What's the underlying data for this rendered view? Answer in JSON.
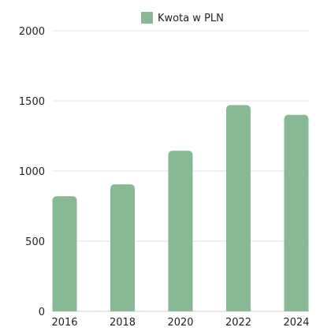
{
  "chart_data": {
    "type": "bar",
    "categories": [
      "2016",
      "2018",
      "2020",
      "2022",
      "2024"
    ],
    "series": [
      {
        "name": "Kwota w PLN",
        "values": [
          820,
          905,
          1145,
          1470,
          1400
        ]
      }
    ],
    "yticks": [
      "0",
      "500",
      "1000",
      "1500",
      "2000"
    ],
    "ylim": [
      0,
      2000
    ],
    "grid": true,
    "legend_position": "top-center",
    "colors": {
      "bar": "#86b994",
      "grid": "#e3e3e3",
      "text": "#222222"
    }
  }
}
